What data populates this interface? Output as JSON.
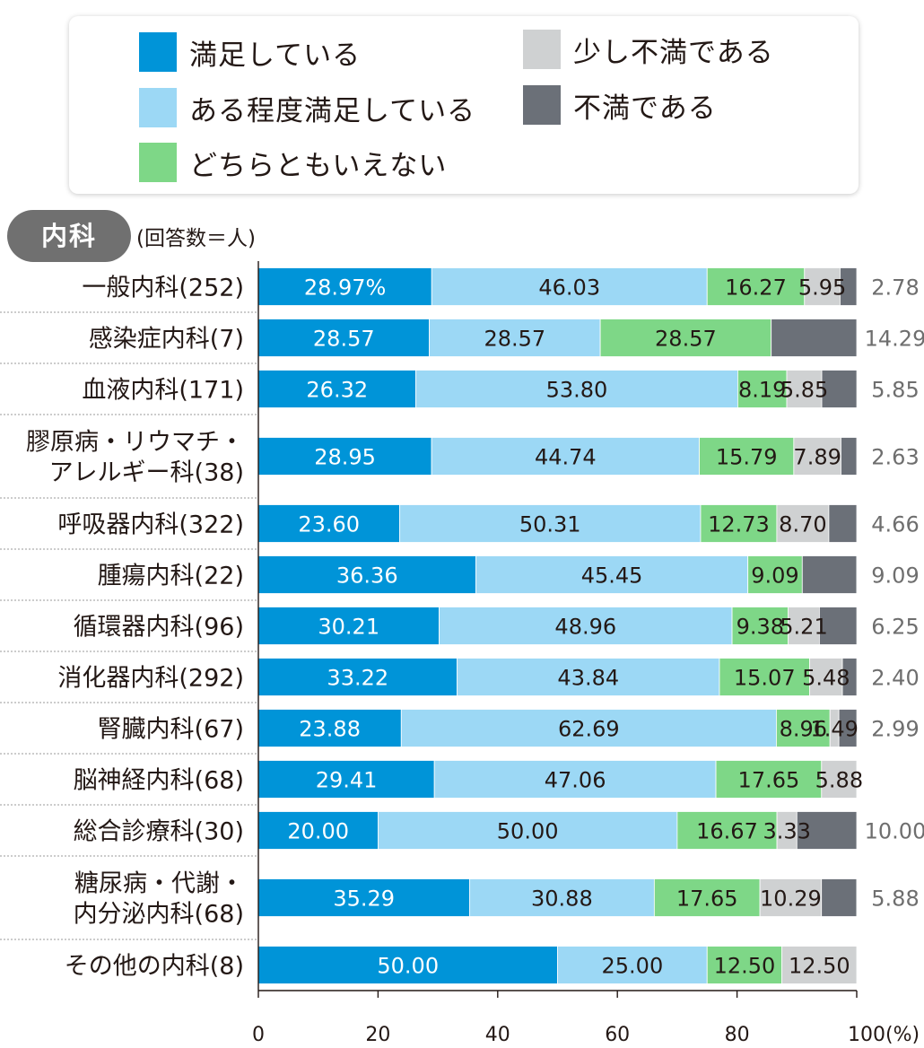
{
  "legend": {
    "items": [
      {
        "label": "満足している",
        "color": "#0094d8"
      },
      {
        "label": "ある程度満足している",
        "color": "#9cd8f5"
      },
      {
        "label": "どちらともいえない",
        "color": "#7ed787"
      },
      {
        "label": "少し不満である",
        "color": "#cfd1d2"
      },
      {
        "label": "不満である",
        "color": "#6b7078"
      }
    ]
  },
  "section": {
    "badge": "内科",
    "unit_note": "(回答数＝人)"
  },
  "chart_data": {
    "type": "bar",
    "orientation": "horizontal",
    "stacked": true,
    "categories": [
      "一般内科(252)",
      "感染症内科(7)",
      "血液内科(171)",
      "膠原病・リウマチ・アレルギー科(38)",
      "呼吸器内科(322)",
      "腫瘍内科(22)",
      "循環器内科(96)",
      "消化器内科(292)",
      "腎臓内科(67)",
      "脳神経内科(68)",
      "総合診療科(30)",
      "糖尿病・代謝・内分泌内科(68)",
      "その他の内科(8)"
    ],
    "category_lines": [
      [
        "一般内科(252)"
      ],
      [
        "感染症内科(7)"
      ],
      [
        "血液内科(171)"
      ],
      [
        "膠原病・リウマチ・",
        "アレルギー科(38)"
      ],
      [
        "呼吸器内科(322)"
      ],
      [
        "腫瘍内科(22)"
      ],
      [
        "循環器内科(96)"
      ],
      [
        "消化器内科(292)"
      ],
      [
        "腎臓内科(67)"
      ],
      [
        "脳神経内科(68)"
      ],
      [
        "総合診療科(30)"
      ],
      [
        "糖尿病・代謝・",
        "内分泌内科(68)"
      ],
      [
        "その他の内科(8)"
      ]
    ],
    "series": [
      {
        "name": "満足している",
        "color": "#0094d8",
        "values": [
          28.97,
          28.57,
          26.32,
          28.95,
          23.6,
          36.36,
          30.21,
          33.22,
          23.88,
          29.41,
          20.0,
          35.29,
          50.0
        ],
        "labels": [
          "28.97%",
          "28.57",
          "26.32",
          "28.95",
          "23.60",
          "36.36",
          "30.21",
          "33.22",
          "23.88",
          "29.41",
          "20.00",
          "35.29",
          "50.00"
        ]
      },
      {
        "name": "ある程度満足している",
        "color": "#9cd8f5",
        "values": [
          46.03,
          28.57,
          53.8,
          44.74,
          50.31,
          45.45,
          48.96,
          43.84,
          62.69,
          47.06,
          50.0,
          30.88,
          25.0
        ],
        "labels": [
          "46.03",
          "28.57",
          "53.80",
          "44.74",
          "50.31",
          "45.45",
          "48.96",
          "43.84",
          "62.69",
          "47.06",
          "50.00",
          "30.88",
          "25.00"
        ]
      },
      {
        "name": "どちらともいえない",
        "color": "#7ed787",
        "values": [
          16.27,
          28.57,
          8.19,
          15.79,
          12.73,
          9.09,
          9.38,
          15.07,
          8.96,
          17.65,
          16.67,
          17.65,
          12.5
        ],
        "labels": [
          "16.27",
          "28.57",
          "8.19",
          "15.79",
          "12.73",
          "9.09",
          "9.38",
          "15.07",
          "8.96",
          "17.65",
          "16.67",
          "17.65",
          "12.50"
        ]
      },
      {
        "name": "少し不満である",
        "color": "#cfd1d2",
        "values": [
          5.95,
          0,
          5.85,
          7.89,
          8.7,
          0,
          5.21,
          5.48,
          1.49,
          5.88,
          3.33,
          10.29,
          12.5
        ],
        "labels": [
          "5.95",
          "",
          "5.85",
          "7.89",
          "8.70",
          "",
          "5.21",
          "5.48",
          "1.49",
          "5.88",
          "3.33",
          "10.29",
          "12.50"
        ]
      },
      {
        "name": "不満である",
        "color": "#6b7078",
        "values": [
          2.78,
          14.29,
          5.85,
          2.63,
          4.66,
          9.09,
          6.25,
          2.4,
          2.99,
          0,
          10.0,
          5.88,
          0
        ],
        "labels": [
          "2.78",
          "14.29",
          "5.85",
          "2.63",
          "4.66",
          "9.09",
          "6.25",
          "2.40",
          "2.99",
          "",
          "10.00",
          "5.88",
          ""
        ]
      }
    ],
    "xlim": [
      0,
      100
    ],
    "xticks": [
      0,
      20,
      40,
      60,
      80,
      100
    ],
    "xtick_labels": [
      "0",
      "20",
      "40",
      "60",
      "80",
      "100(%)"
    ],
    "grid": false
  }
}
